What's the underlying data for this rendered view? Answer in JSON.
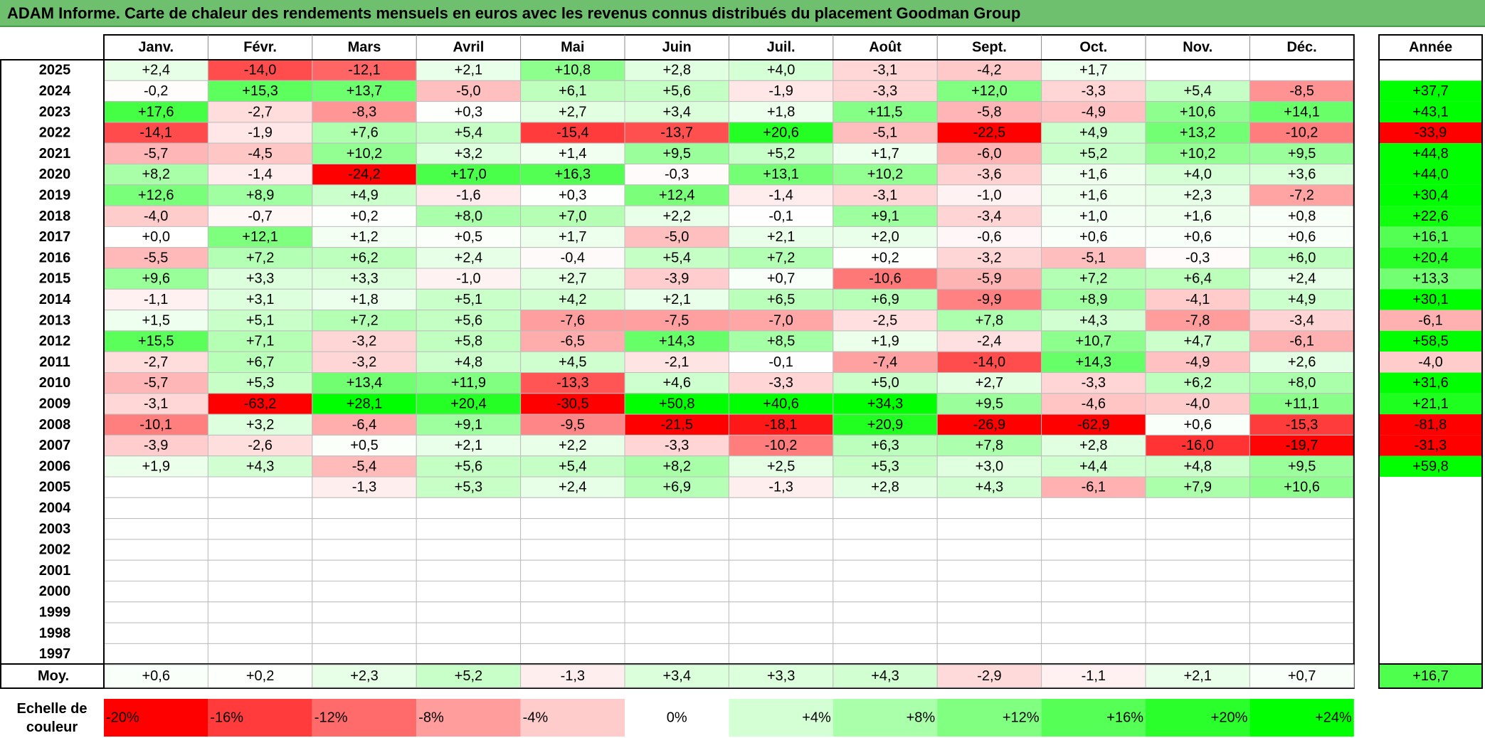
{
  "title": "ADAM Informe. Carte de chaleur des rendements mensuels en euros avec les revenus connus distribués du placement Goodman Group",
  "chart_data": {
    "type": "heatmap",
    "months": [
      "Janv.",
      "Févr.",
      "Mars",
      "Avril",
      "Mai",
      "Juin",
      "Juil.",
      "Août",
      "Sept.",
      "Oct.",
      "Nov.",
      "Déc."
    ],
    "year_header": "Année",
    "rows": [
      {
        "year": "2025",
        "values": [
          "+2,4",
          "-14,0",
          "-12,1",
          "+2,1",
          "+10,8",
          "+2,8",
          "+4,0",
          "-3,1",
          "-4,2",
          "+1,7",
          "",
          ""
        ],
        "annual": ""
      },
      {
        "year": "2024",
        "values": [
          "-0,2",
          "+15,3",
          "+13,7",
          "-5,0",
          "+6,1",
          "+5,6",
          "-1,9",
          "-3,3",
          "+12,0",
          "-3,3",
          "+5,4",
          "-8,5"
        ],
        "annual": "+37,7"
      },
      {
        "year": "2023",
        "values": [
          "+17,6",
          "-2,7",
          "-8,3",
          "+0,3",
          "+2,7",
          "+3,4",
          "+1,8",
          "+11,5",
          "-5,8",
          "-4,9",
          "+10,6",
          "+14,1"
        ],
        "annual": "+43,1"
      },
      {
        "year": "2022",
        "values": [
          "-14,1",
          "-1,9",
          "+7,6",
          "+5,4",
          "-15,4",
          "-13,7",
          "+20,6",
          "-5,1",
          "-22,5",
          "+4,9",
          "+13,2",
          "-10,2"
        ],
        "annual": "-33,9"
      },
      {
        "year": "2021",
        "values": [
          "-5,7",
          "-4,5",
          "+10,2",
          "+3,2",
          "+1,4",
          "+9,5",
          "+5,2",
          "+1,7",
          "-6,0",
          "+5,2",
          "+10,2",
          "+9,5"
        ],
        "annual": "+44,8"
      },
      {
        "year": "2020",
        "values": [
          "+8,2",
          "-1,4",
          "-24,2",
          "+17,0",
          "+16,3",
          "-0,3",
          "+13,1",
          "+10,2",
          "-3,6",
          "+1,6",
          "+4,0",
          "+3,6"
        ],
        "annual": "+44,0"
      },
      {
        "year": "2019",
        "values": [
          "+12,6",
          "+8,9",
          "+4,9",
          "-1,6",
          "+0,3",
          "+12,4",
          "-1,4",
          "-3,1",
          "-1,0",
          "+1,6",
          "+2,3",
          "-7,2"
        ],
        "annual": "+30,4"
      },
      {
        "year": "2018",
        "values": [
          "-4,0",
          "-0,7",
          "+0,2",
          "+8,0",
          "+7,0",
          "+2,2",
          "-0,1",
          "+9,1",
          "-3,4",
          "+1,0",
          "+1,6",
          "+0,8"
        ],
        "annual": "+22,6"
      },
      {
        "year": "2017",
        "values": [
          "+0,0",
          "+12,1",
          "+1,2",
          "+0,5",
          "+1,7",
          "-5,0",
          "+2,1",
          "+2,0",
          "-0,6",
          "+0,6",
          "+0,6",
          "+0,6"
        ],
        "annual": "+16,1"
      },
      {
        "year": "2016",
        "values": [
          "-5,5",
          "+7,2",
          "+6,2",
          "+2,4",
          "-0,4",
          "+5,4",
          "+7,2",
          "+0,2",
          "-3,2",
          "-5,1",
          "-0,3",
          "+6,0"
        ],
        "annual": "+20,4"
      },
      {
        "year": "2015",
        "values": [
          "+9,6",
          "+3,3",
          "+3,3",
          "-1,0",
          "+2,7",
          "-3,9",
          "+0,7",
          "-10,6",
          "-5,9",
          "+7,2",
          "+6,4",
          "+2,4"
        ],
        "annual": "+13,3"
      },
      {
        "year": "2014",
        "values": [
          "-1,1",
          "+3,1",
          "+1,8",
          "+5,1",
          "+4,2",
          "+2,1",
          "+6,5",
          "+6,9",
          "-9,9",
          "+8,9",
          "-4,1",
          "+4,9"
        ],
        "annual": "+30,1"
      },
      {
        "year": "2013",
        "values": [
          "+1,5",
          "+5,1",
          "+7,2",
          "+5,6",
          "-7,6",
          "-7,5",
          "-7,0",
          "-2,5",
          "+7,8",
          "+4,3",
          "-7,8",
          "-3,4"
        ],
        "annual": "-6,1"
      },
      {
        "year": "2012",
        "values": [
          "+15,5",
          "+7,1",
          "-3,2",
          "+5,8",
          "-6,5",
          "+14,3",
          "+8,5",
          "+1,9",
          "-2,4",
          "+10,7",
          "+4,7",
          "-6,1"
        ],
        "annual": "+58,5"
      },
      {
        "year": "2011",
        "values": [
          "-2,7",
          "+6,7",
          "-3,2",
          "+4,8",
          "+4,5",
          "-2,1",
          "-0,1",
          "-7,4",
          "-14,0",
          "+14,3",
          "-4,9",
          "+2,6"
        ],
        "annual": "-4,0"
      },
      {
        "year": "2010",
        "values": [
          "-5,7",
          "+5,3",
          "+13,4",
          "+11,9",
          "-13,3",
          "+4,6",
          "-3,3",
          "+5,0",
          "+2,7",
          "-3,3",
          "+6,2",
          "+8,0"
        ],
        "annual": "+31,6"
      },
      {
        "year": "2009",
        "values": [
          "-3,1",
          "-63,2",
          "+28,1",
          "+20,4",
          "-30,5",
          "+50,8",
          "+40,6",
          "+34,3",
          "+9,5",
          "-4,6",
          "-4,0",
          "+11,1"
        ],
        "annual": "+21,1"
      },
      {
        "year": "2008",
        "values": [
          "-10,1",
          "+3,2",
          "-6,4",
          "+9,1",
          "-9,5",
          "-21,5",
          "-18,1",
          "+20,9",
          "-26,9",
          "-62,9",
          "+0,6",
          "-15,3"
        ],
        "annual": "-81,8"
      },
      {
        "year": "2007",
        "values": [
          "-3,9",
          "-2,6",
          "+0,5",
          "+2,1",
          "+2,2",
          "-3,3",
          "-10,2",
          "+6,3",
          "+7,8",
          "+2,8",
          "-16,0",
          "-19,7"
        ],
        "annual": "-31,3"
      },
      {
        "year": "2006",
        "values": [
          "+1,9",
          "+4,3",
          "-5,4",
          "+5,6",
          "+5,4",
          "+8,2",
          "+2,5",
          "+5,3",
          "+3,0",
          "+4,4",
          "+4,8",
          "+9,5"
        ],
        "annual": "+59,8"
      },
      {
        "year": "2005",
        "values": [
          "",
          "",
          "-1,3",
          "+5,3",
          "+2,4",
          "+6,9",
          "-1,3",
          "+2,8",
          "+4,3",
          "-6,1",
          "+7,9",
          "+10,6"
        ],
        "annual": ""
      },
      {
        "year": "2004",
        "values": [
          "",
          "",
          "",
          "",
          "",
          "",
          "",
          "",
          "",
          "",
          "",
          ""
        ],
        "annual": ""
      },
      {
        "year": "2003",
        "values": [
          "",
          "",
          "",
          "",
          "",
          "",
          "",
          "",
          "",
          "",
          "",
          ""
        ],
        "annual": ""
      },
      {
        "year": "2002",
        "values": [
          "",
          "",
          "",
          "",
          "",
          "",
          "",
          "",
          "",
          "",
          "",
          ""
        ],
        "annual": ""
      },
      {
        "year": "2001",
        "values": [
          "",
          "",
          "",
          "",
          "",
          "",
          "",
          "",
          "",
          "",
          "",
          ""
        ],
        "annual": ""
      },
      {
        "year": "2000",
        "values": [
          "",
          "",
          "",
          "",
          "",
          "",
          "",
          "",
          "",
          "",
          "",
          ""
        ],
        "annual": ""
      },
      {
        "year": "1999",
        "values": [
          "",
          "",
          "",
          "",
          "",
          "",
          "",
          "",
          "",
          "",
          "",
          ""
        ],
        "annual": ""
      },
      {
        "year": "1998",
        "values": [
          "",
          "",
          "",
          "",
          "",
          "",
          "",
          "",
          "",
          "",
          "",
          ""
        ],
        "annual": ""
      },
      {
        "year": "1997",
        "values": [
          "",
          "",
          "",
          "",
          "",
          "",
          "",
          "",
          "",
          "",
          "",
          ""
        ],
        "annual": ""
      }
    ],
    "average": {
      "label": "Moy.",
      "values": [
        "+0,6",
        "+0,2",
        "+2,3",
        "+5,2",
        "-1,3",
        "+3,4",
        "+3,3",
        "+4,3",
        "-2,9",
        "-1,1",
        "+2,1",
        "+0,7"
      ],
      "annual": "+16,7"
    },
    "scale": {
      "label_line1": "Echelle de",
      "label_line2": "couleur",
      "items": [
        {
          "label": "-20%",
          "color": "#ff0000"
        },
        {
          "label": "-16%",
          "color": "#ff3b3b"
        },
        {
          "label": "-12%",
          "color": "#ff6a6a"
        },
        {
          "label": "-8%",
          "color": "#ff9c9c"
        },
        {
          "label": "-4%",
          "color": "#ffcccc"
        },
        {
          "label": "0%",
          "color": "#ffffff"
        },
        {
          "label": "+4%",
          "color": "#d4ffd4"
        },
        {
          "label": "+8%",
          "color": "#aaffaa"
        },
        {
          "label": "+12%",
          "color": "#80ff80"
        },
        {
          "label": "+16%",
          "color": "#55ff55"
        },
        {
          "label": "+20%",
          "color": "#2bff2b"
        },
        {
          "label": "+24%",
          "color": "#00ff00"
        }
      ]
    }
  }
}
